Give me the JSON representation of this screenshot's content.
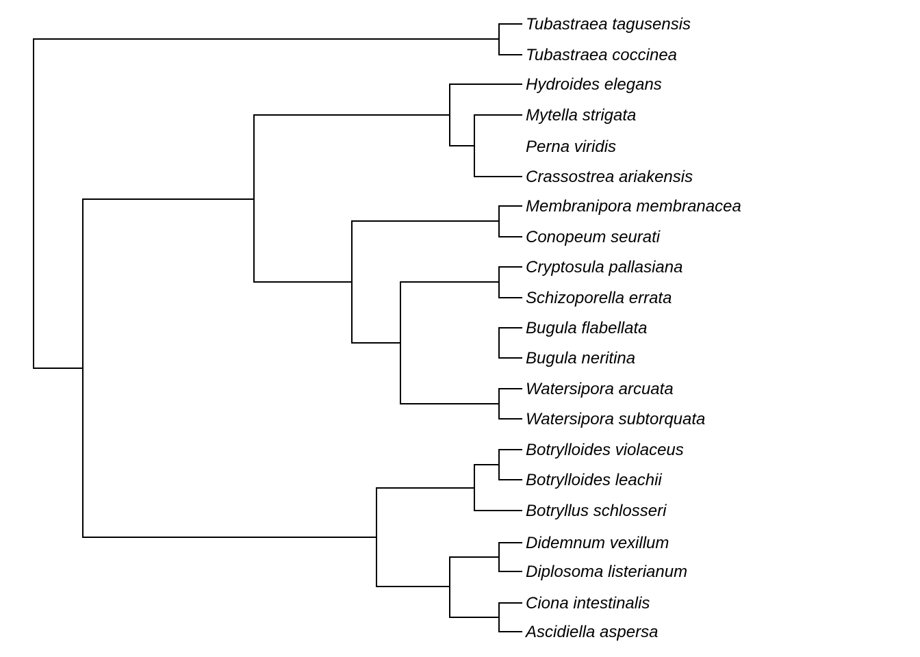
{
  "tree": {
    "taxa": [
      "Tubastraea tagusensis",
      "Tubastraea coccinea",
      "Hydroides elegans",
      "Mytella strigata",
      "Perna viridis",
      "Crassostrea ariakensis",
      "Membranipora membranacea",
      "Conopeum seurati",
      "Cryptosula pallasiana",
      "Schizoporella errata",
      "Bugula flabellata",
      "Bugula neritina",
      "Watersipora arcuata",
      "Watersipora subtorquata",
      "Botrylloides violaceus",
      "Botrylloides leachii",
      "Botryllus schlosseri",
      "Didemnum vexillum",
      "Diplosoma listerianum",
      "Ciona intestinalis",
      "Ascidiella aspersa"
    ],
    "colors": {
      "branch": "#000000",
      "label": "#000000",
      "background": "#ffffff"
    }
  }
}
